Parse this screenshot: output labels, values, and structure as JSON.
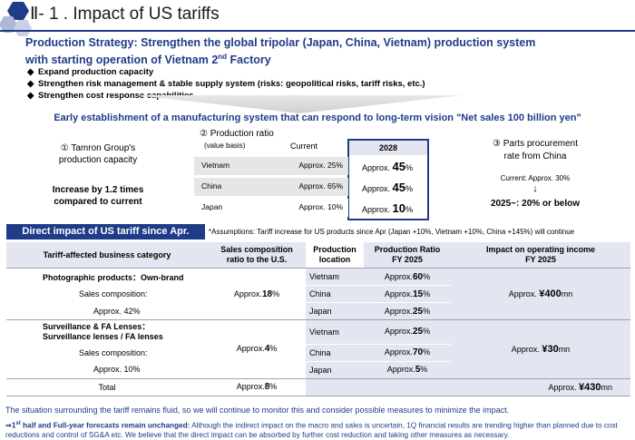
{
  "title": "Ⅱ- 1 . Impact of US tariffs",
  "strategy": {
    "line1": "Production Strategy: Strengthen the global tripolar (Japan, China, Vietnam) production system",
    "line2_pre": "with starting operation of Vietnam 2",
    "line2_sup": "nd",
    "line2_post": " Factory",
    "bullets": [
      "Expand production capacity",
      "Strengthen risk management & stable supply system (risks: geopolitical risks, tariff risks, etc.)",
      "Strengthen cost response capabilities"
    ]
  },
  "early_text": "Early establishment of a manufacturing system that can respond to long-term vision \"Net sales 100 billion yen\"",
  "capacity": {
    "title_line1": "① Tamron Group's",
    "title_line2": "production capacity",
    "increase_line1": "Increase by 1.2 times",
    "increase_line2": "compared to current"
  },
  "ratio": {
    "title": "② Production ratio",
    "subtitle": "(value basis)",
    "current_header": "Current",
    "target_header": "2028",
    "rows": [
      {
        "region": "Vietnam",
        "current": "Approx. 25%",
        "target_pre": "Approx.",
        "target_num": "45",
        "target_unit": "%"
      },
      {
        "region": "China",
        "current": "Approx. 65%",
        "target_pre": "Approx.",
        "target_num": "45",
        "target_unit": "%"
      },
      {
        "region": "Japan",
        "current": "Approx. 10%",
        "target_pre": "Approx.",
        "target_num": "10",
        "target_unit": "%"
      }
    ]
  },
  "procurement": {
    "title_line1": "③ Parts procurement",
    "title_line2": "rate from China",
    "current": "Current: Approx. 30%",
    "arrow": "↓",
    "target": "2025~: 20% or below"
  },
  "direct_head": "Direct impact of US tariff since Apr.",
  "assumptions": "*Assumptions: Tariff increase for US products since Apr (Japan +10%, Vietnam +10%, China +145%) will continue",
  "table": {
    "headers": {
      "category": "Tariff-affected business category",
      "sales_l1": "Sales composition",
      "sales_l2": "ratio to the U.S.",
      "loc_l1": "Production",
      "loc_l2": "location",
      "ratio_l1": "Production Ratio",
      "ratio_l2": "FY 2025",
      "impact_l1": "Impact on operating income",
      "impact_l2": "FY 2025"
    },
    "photo": {
      "name": "Photographic products：Own-brand",
      "sales_label": "Sales composition:",
      "sales_value": "Approx. 42%",
      "us_pre": "Approx.",
      "us_num": "18",
      "us_unit": "%",
      "rows": [
        {
          "loc": "Vietnam",
          "pre": "Approx.",
          "num": "60",
          "unit": "%"
        },
        {
          "loc": "China",
          "pre": "Approx.",
          "num": "15",
          "unit": "%"
        },
        {
          "loc": "Japan",
          "pre": "Approx.",
          "num": "25",
          "unit": "%"
        }
      ],
      "impact_pre": "Approx.",
      "impact_num": "¥400",
      "impact_unit": "mn"
    },
    "surv": {
      "name_l1": "Surveillance & FA Lenses：",
      "name_l2": "Surveillance lenses / FA lenses",
      "sales_label": "Sales composition:",
      "sales_value": "Approx. 10%",
      "us_pre": "Approx.",
      "us_num": "4",
      "us_unit": "%",
      "rows": [
        {
          "loc": "Vietnam",
          "pre": "Approx.",
          "num": "25",
          "unit": "%"
        },
        {
          "loc": "China",
          "pre": "Approx.",
          "num": "70",
          "unit": "%"
        },
        {
          "loc": "Japan",
          "pre": "Approx.",
          "num": "5",
          "unit": "%"
        }
      ],
      "impact_pre": "Approx.",
      "impact_num": "¥30",
      "impact_unit": "mn"
    },
    "total": {
      "label": "Total",
      "us_pre": "Approx.",
      "us_num": "8",
      "us_unit": "%",
      "impact_pre": "Approx.",
      "impact_num": "¥430",
      "impact_unit": "mn"
    }
  },
  "situation": "The situation surrounding the tariff remains fluid, so we will continue to monitor this and consider possible measures to minimize the impact.",
  "forecast": {
    "arrow": "⇒1",
    "sup": "st",
    "bold": " half and Full-year forecasts remain unchanged:",
    "rest": " Although the indirect impact on the macro and sales is uncertain, 1Q financial results are trending higher than planned due to cost reductions and control of SG&A etc. We believe that the direct impact can be absorbed by further cost reduction and taking other measures as necessary."
  },
  "colors": {
    "navy": "#1f3c88",
    "lavender": "#e3e5f1",
    "gray_cell": "#e6e6e6"
  }
}
